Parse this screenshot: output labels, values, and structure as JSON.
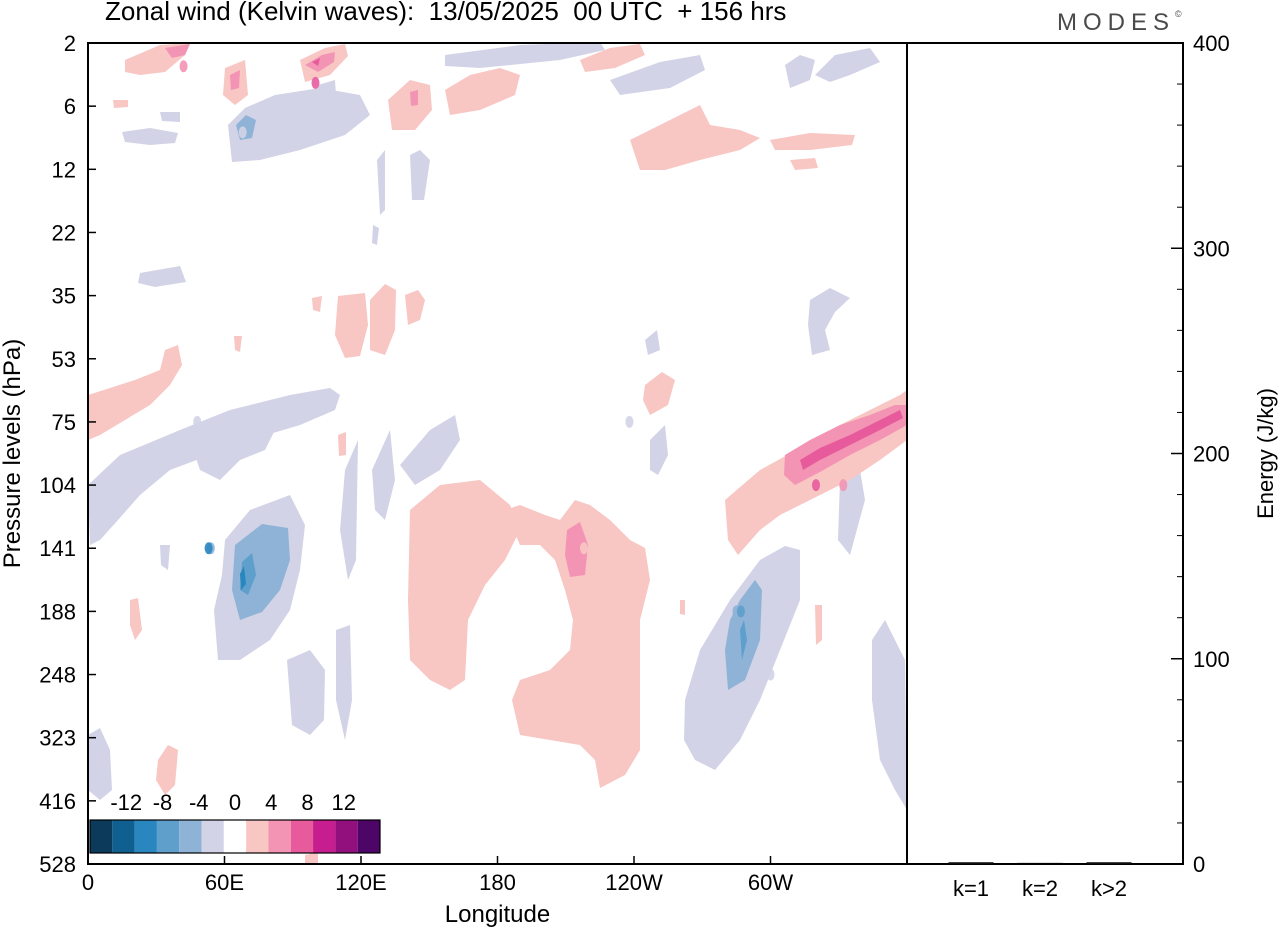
{
  "header": {
    "title": "Zonal wind (Kelvin waves):  13/05/2025  00 UTC  + 156 hrs",
    "brand": "MODES",
    "brand_mark": "©"
  },
  "chart_data": [
    {
      "type": "heatmap",
      "title": "Zonal wind (Kelvin waves)",
      "xlabel": "Longitude",
      "ylabel": "Pressure levels (hPa)",
      "x_ticks": [
        "0",
        "60E",
        "120E",
        "180",
        "120W",
        "60W"
      ],
      "x_range_deg_east": [
        0,
        360
      ],
      "y_ticks": [
        "2",
        "6",
        "12",
        "22",
        "35",
        "53",
        "75",
        "104",
        "141",
        "188",
        "248",
        "323",
        "416",
        "528"
      ],
      "y_scale": "categorical levels, 2 hPa at top to 528 hPa at bottom",
      "colorbar": {
        "tick_labels": [
          "-12",
          "-8",
          "-4",
          "0",
          "4",
          "8",
          "12"
        ],
        "bins": [
          {
            "lo": -16,
            "hi": -14,
            "color": "#0b3a5a"
          },
          {
            "lo": -14,
            "hi": -12,
            "color": "#0f5f90"
          },
          {
            "lo": -12,
            "hi": -10,
            "color": "#2a86bf"
          },
          {
            "lo": -10,
            "hi": -8,
            "color": "#5e9fcc"
          },
          {
            "lo": -8,
            "hi": -6,
            "color": "#8fb3d6"
          },
          {
            "lo": -6,
            "hi": -2,
            "color": "#d2d3e6"
          },
          {
            "lo": -2,
            "hi": 2,
            "color": "#ffffff"
          },
          {
            "lo": 2,
            "hi": 6,
            "color": "#f8c6c3"
          },
          {
            "lo": 6,
            "hi": 8,
            "color": "#f394b4"
          },
          {
            "lo": 8,
            "hi": 10,
            "color": "#e75b9d"
          },
          {
            "lo": 10,
            "hi": 12,
            "color": "#c61d8f"
          },
          {
            "lo": 12,
            "hi": 14,
            "color": "#92107e"
          },
          {
            "lo": 14,
            "hi": 16,
            "color": "#4d0568"
          }
        ]
      },
      "features": [
        {
          "lon": 54,
          "level": 141,
          "value": -8
        },
        {
          "lon": 53,
          "level": 141,
          "value": -11
        },
        {
          "lon": 48,
          "level": 75,
          "value": -5
        },
        {
          "lon": 68,
          "level": 8,
          "value": -6
        },
        {
          "lon": 238,
          "level": 75,
          "value": -4
        },
        {
          "lon": 285,
          "level": 188,
          "value": -7
        },
        {
          "lon": 287,
          "level": 188,
          "value": -10
        },
        {
          "lon": 300,
          "level": 248,
          "value": -4
        },
        {
          "lon": 152,
          "level": 188,
          "value": 4
        },
        {
          "lon": 218,
          "level": 141,
          "value": 4
        },
        {
          "lon": 214,
          "level": 141,
          "value": 7
        },
        {
          "lon": 332,
          "level": 104,
          "value": 6
        },
        {
          "lon": 320,
          "level": 104,
          "value": 8
        },
        {
          "lon": 10,
          "level": 75,
          "value": 4
        },
        {
          "lon": 100,
          "level": 4,
          "value": 9
        },
        {
          "lon": 42,
          "level": 3,
          "value": 7
        },
        {
          "lon": 255,
          "level": 8,
          "value": 4
        }
      ]
    },
    {
      "type": "bar",
      "categories": [
        "k=1",
        "k=2",
        "k>2"
      ],
      "values": [
        0.6,
        0.3,
        0.6
      ],
      "ylabel": "Energy (J/kg)",
      "ylim": [
        0,
        400
      ],
      "y_ticks": [
        "0",
        "100",
        "200",
        "300",
        "400"
      ]
    }
  ]
}
